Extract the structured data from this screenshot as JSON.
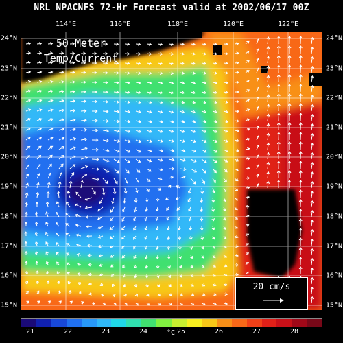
{
  "title": "NRL NPACNFS 72-Hr Forecast valid at 2002/06/17 00Z",
  "inset": {
    "line1": "50 Meter",
    "line2": "Temp/Current"
  },
  "lon_labels": [
    "114°E",
    "116°E",
    "118°E",
    "120°E",
    "122°E"
  ],
  "lat_labels": [
    "24°N",
    "23°N",
    "22°N",
    "21°N",
    "20°N",
    "19°N",
    "18°N",
    "17°N",
    "16°N",
    "15°N"
  ],
  "scale": {
    "label": "20 cm/s"
  },
  "colorbar": {
    "unit": "°C",
    "tick_labels": [
      "21",
      "22",
      "23",
      "24",
      "25",
      "26",
      "27",
      "28"
    ],
    "colors": [
      "#1a0a78",
      "#1020b0",
      "#1848d8",
      "#2070f0",
      "#2898f8",
      "#30b8f8",
      "#20d8e8",
      "#30e0b0",
      "#40e070",
      "#80f040",
      "#c8f030",
      "#f8f020",
      "#f8c818",
      "#f89018",
      "#f86818",
      "#f04018",
      "#e02018",
      "#c81018",
      "#a00818",
      "#780818"
    ]
  },
  "colors": {
    "land": "#000000",
    "vectors": "#ffffff"
  }
}
